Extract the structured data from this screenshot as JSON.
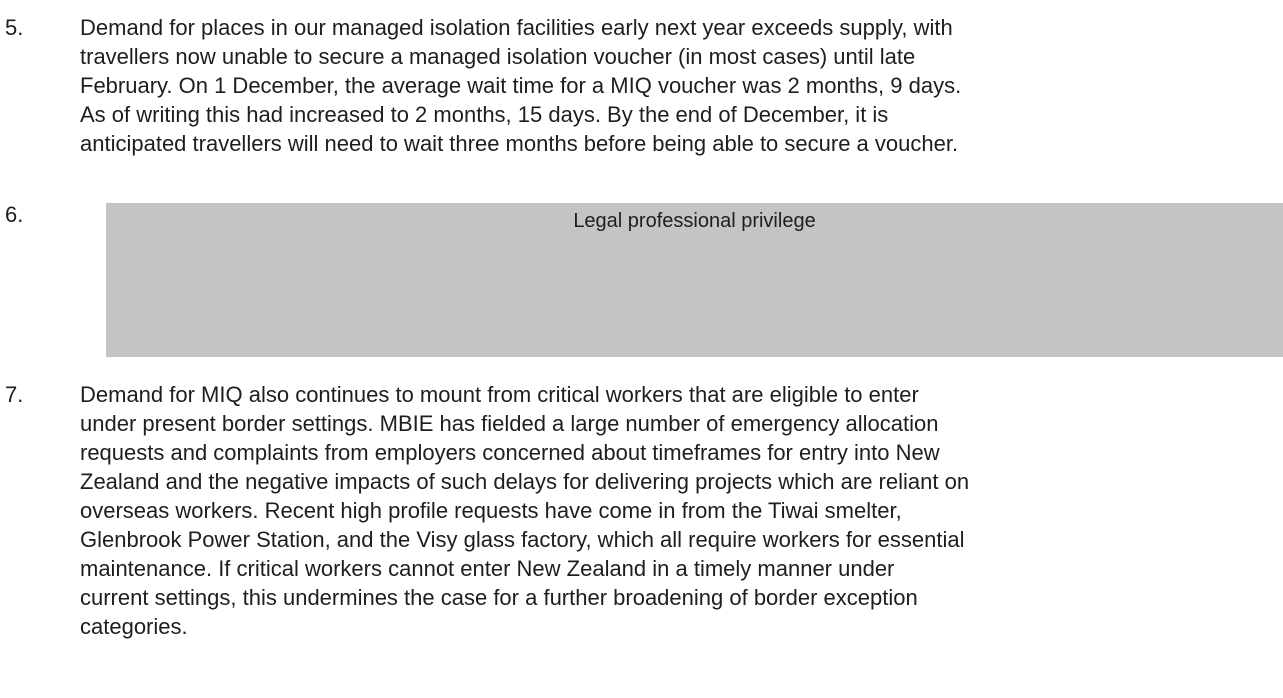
{
  "paragraphs": [
    {
      "number": "5.",
      "lines": [
        "Demand for places in our managed isolation facilities early next year exceeds supply, with",
        "travellers now unable to secure a managed isolation voucher (in most cases) until late",
        "February.  On 1 December, the average wait time for a MIQ voucher was 2 months, 9 days.",
        "As of writing this had increased to 2 months, 15 days.  By the end of December, it is",
        "anticipated travellers will need to wait three months before being able to secure a voucher."
      ]
    },
    {
      "number": "6.",
      "redaction": "Legal professional privilege"
    },
    {
      "number": "7.",
      "lines": [
        "Demand for MIQ also continues to mount from critical workers that are eligible to enter",
        "under present border settings.  MBIE has fielded a large number of emergency allocation",
        "requests and complaints from employers concerned about timeframes for entry into New",
        "Zealand and the negative impacts of such delays for delivering projects which are reliant on",
        "overseas workers.  Recent high profile requests have come in from the Tiwai smelter,",
        "Glenbrook Power Station, and the Visy glass factory, which all require workers for essential",
        "maintenance.  If critical workers cannot enter New Zealand in a timely manner under",
        "current settings, this undermines the case for a further broadening of border exception",
        "categories."
      ]
    }
  ]
}
